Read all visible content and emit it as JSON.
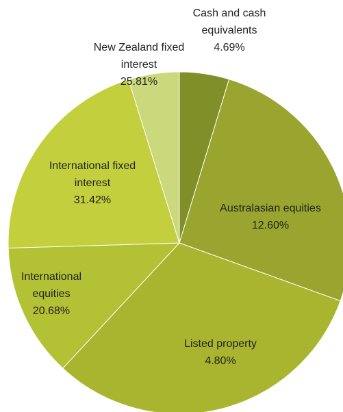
{
  "chart_data": {
    "type": "pie",
    "categories": [
      "Cash and cash equivalents",
      "New Zealand fixed interest",
      "International fixed interest",
      "Australasian equities",
      "International equities",
      "Listed property"
    ],
    "values": [
      4.69,
      25.81,
      31.42,
      12.6,
      20.68,
      4.8
    ],
    "value_labels": [
      "4.69%",
      "25.81%",
      "31.42%",
      "12.60%",
      "20.68%",
      "4.80%"
    ],
    "colors": [
      "#818f29",
      "#99a52e",
      "#a9b52f",
      "#b3c134",
      "#c3cf3c",
      "#cbd97c"
    ]
  }
}
